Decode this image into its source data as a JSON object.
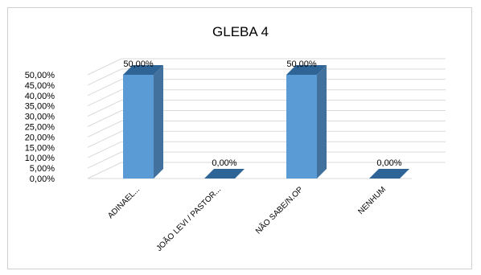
{
  "chart_data": {
    "type": "bar",
    "title": "GLEBA 4",
    "categories": [
      "ADINAEL...",
      "JOÃO LEVI / PASTOR...",
      "NÃO SABE/N.OP",
      "NENHUM"
    ],
    "values": [
      50.0,
      0.0,
      50.0,
      0.0
    ],
    "data_labels": [
      "50,00%",
      "0,00%",
      "50,00%",
      "0,00%"
    ],
    "y_ticks": [
      "0,00%",
      "5,00%",
      "10,00%",
      "15,00%",
      "20,00%",
      "25,00%",
      "30,00%",
      "35,00%",
      "40,00%",
      "45,00%",
      "50,00%"
    ],
    "ylim": [
      0,
      50
    ],
    "xlabel": "",
    "ylabel": "",
    "grid": true,
    "legend": "none",
    "bar_front_color": "#5b9bd5",
    "bar_side_color": "#41719c",
    "bar_top_color": "#2e6496"
  }
}
